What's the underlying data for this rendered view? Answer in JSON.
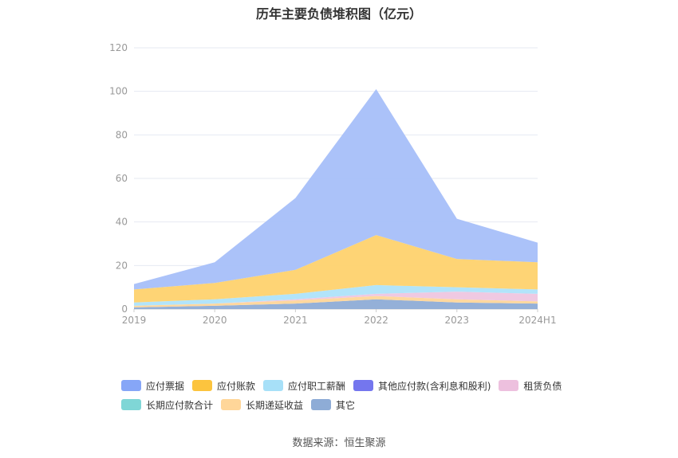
{
  "title": "历年主要负债堆积图（亿元）",
  "source": "数据来源：恒生聚源",
  "chart_data": {
    "type": "area",
    "stacked": true,
    "categories": [
      "2019",
      "2020",
      "2021",
      "2022",
      "2023",
      "2024H1"
    ],
    "ylim": [
      0,
      120
    ],
    "yticks": [
      0,
      20,
      40,
      60,
      80,
      100,
      120
    ],
    "grid": true,
    "legend_position": "bottom",
    "series": [
      {
        "name": "其它",
        "color": "#8eacd6",
        "values": [
          0.8,
          1.5,
          2.5,
          4.5,
          3.0,
          2.5
        ]
      },
      {
        "name": "长期递延收益",
        "color": "#ffd699",
        "values": [
          0.7,
          1.0,
          1.5,
          1.5,
          1.5,
          1.0
        ]
      },
      {
        "name": "长期应付款合计",
        "color": "#80d4d4",
        "values": [
          0.0,
          0.0,
          0.0,
          0.0,
          0.0,
          0.0
        ]
      },
      {
        "name": "租赁负债",
        "color": "#eec6e0",
        "values": [
          0.0,
          0.0,
          0.5,
          1.0,
          3.5,
          3.5
        ]
      },
      {
        "name": "其他应付款(含利息和股利)",
        "color": "#7b7ff0",
        "values": [
          0.0,
          0.0,
          0.0,
          0.0,
          0.0,
          0.0
        ]
      },
      {
        "name": "应付职工薪酬",
        "color": "#aee3fa",
        "values": [
          1.5,
          2.0,
          2.5,
          4.0,
          2.0,
          2.0
        ]
      },
      {
        "name": "应付账款",
        "color": "#fed26e",
        "values": [
          6.0,
          7.5,
          11.0,
          23.0,
          13.0,
          12.5
        ]
      },
      {
        "name": "应付票据",
        "color": "#a6bff9",
        "values": [
          2.5,
          9.5,
          33.0,
          67.0,
          18.5,
          9.0
        ]
      }
    ],
    "legend_order": [
      "应付票据",
      "应付账款",
      "应付职工薪酬",
      "其他应付款(含利息和股利)",
      "租赁负债",
      "长期应付款合计",
      "长期递延收益",
      "其它"
    ],
    "legend_colors": [
      "#86a6f7",
      "#fcc43e",
      "#a7e0f8",
      "#7476ee",
      "#edc0de",
      "#7fd6d6",
      "#ffd699",
      "#8eacd6"
    ]
  }
}
